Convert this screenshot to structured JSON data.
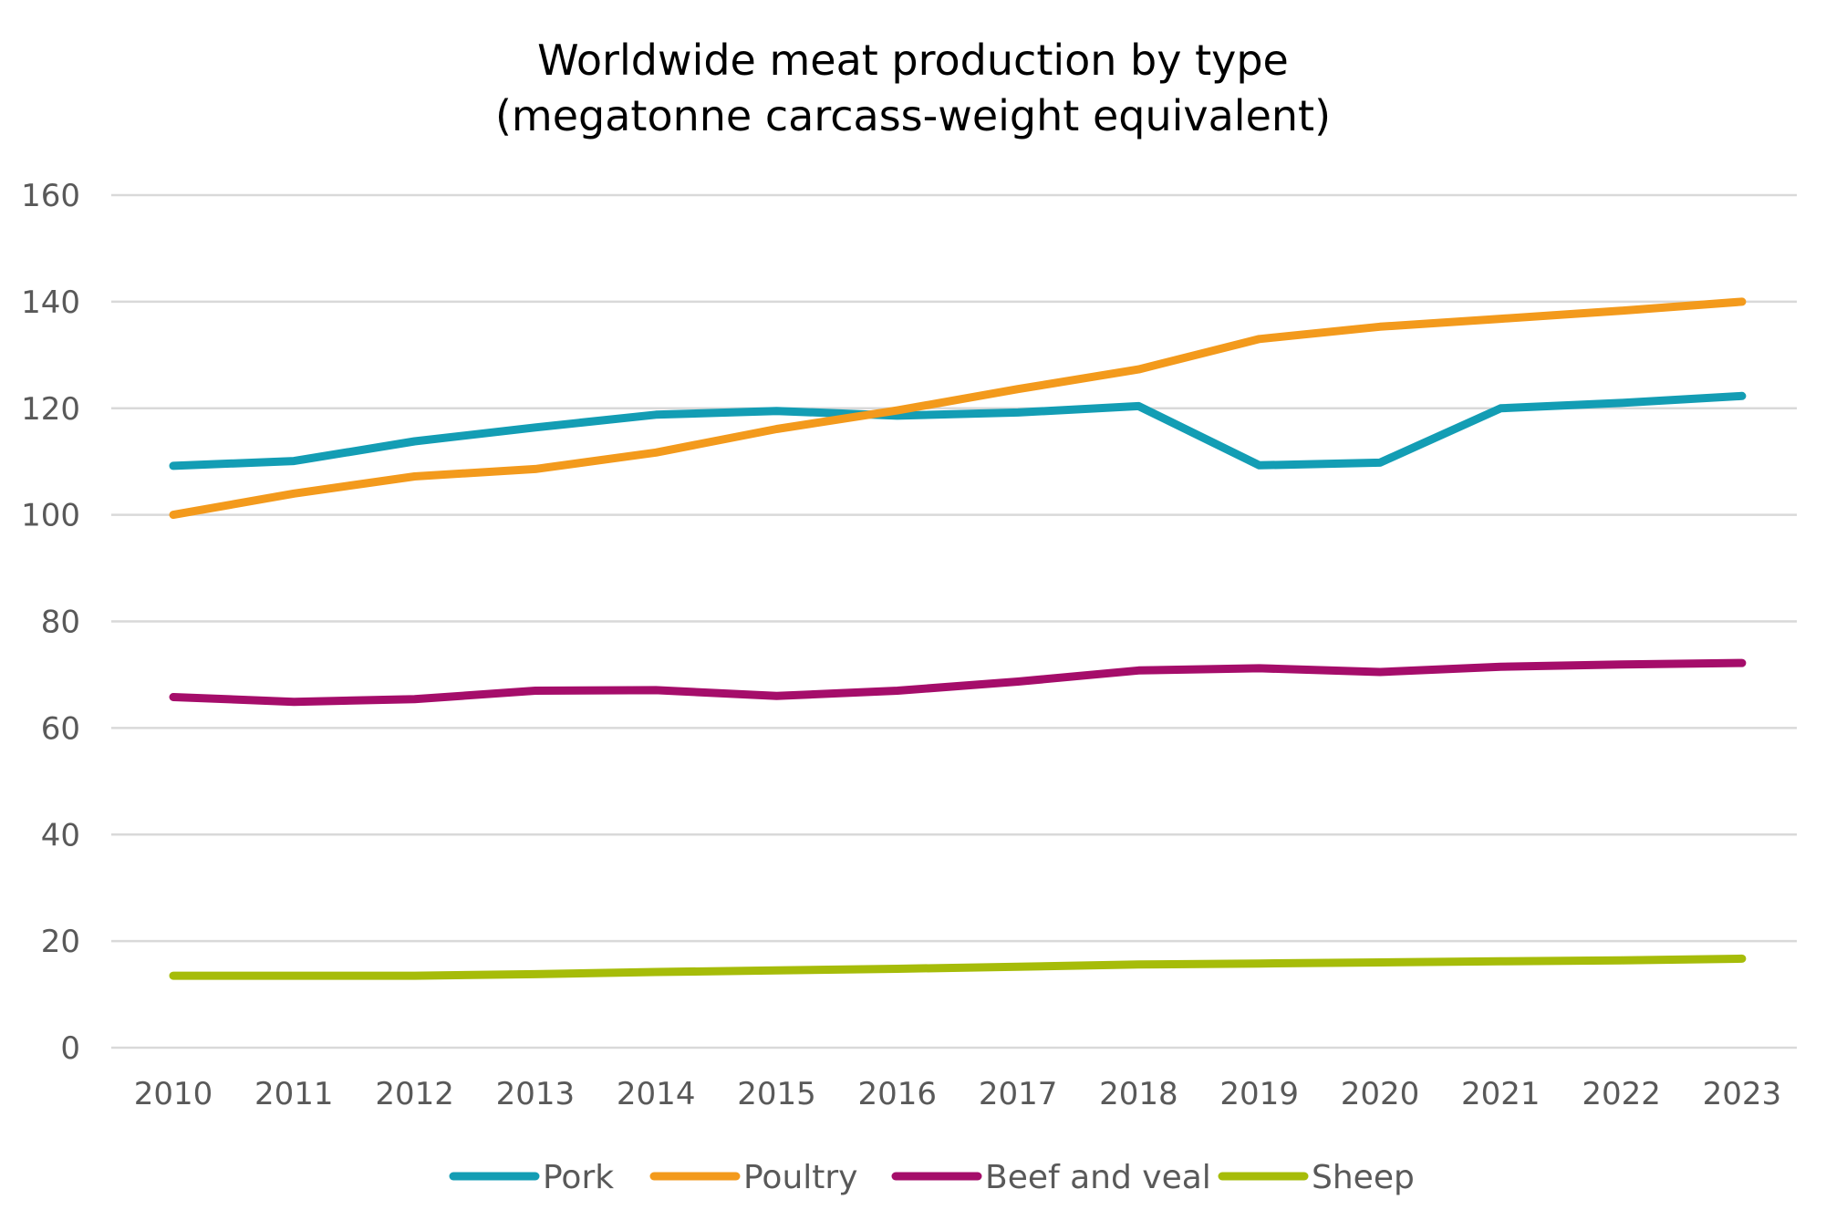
{
  "chart_data": {
    "type": "line",
    "title": "Worldwide meat production by type",
    "subtitle": "(megatonne carcass-weight equivalent)",
    "xlabel": "",
    "ylabel": "",
    "ylim": [
      0,
      160
    ],
    "yticks": [
      0,
      20,
      40,
      60,
      80,
      100,
      120,
      140,
      160
    ],
    "grid": true,
    "legend_position": "bottom",
    "categories": [
      "2010",
      "2011",
      "2012",
      "2013",
      "2014",
      "2015",
      "2016",
      "2017",
      "2018",
      "2019",
      "2020",
      "2021",
      "2022",
      "2023"
    ],
    "series": [
      {
        "name": "Pork",
        "color": "#139DB4",
        "values": [
          109.2,
          110.1,
          113.8,
          116.4,
          118.8,
          119.5,
          118.6,
          119.2,
          120.4,
          109.3,
          109.8,
          120.0,
          121.0,
          122.3
        ]
      },
      {
        "name": "Poultry",
        "color": "#F39A1C",
        "values": [
          100.0,
          104.0,
          107.2,
          108.6,
          111.7,
          116.1,
          119.6,
          123.6,
          127.3,
          133.0,
          135.3,
          136.8,
          138.3,
          140.0
        ]
      },
      {
        "name": "Beef and veal",
        "color": "#A50D6A",
        "values": [
          65.8,
          64.9,
          65.4,
          67.0,
          67.1,
          66.0,
          67.0,
          68.7,
          70.8,
          71.2,
          70.5,
          71.5,
          71.9,
          72.2
        ]
      },
      {
        "name": "Sheep",
        "color": "#A6BC09",
        "values": [
          13.5,
          13.5,
          13.5,
          13.8,
          14.2,
          14.5,
          14.8,
          15.2,
          15.6,
          15.8,
          16.0,
          16.2,
          16.4,
          16.7
        ]
      }
    ]
  }
}
